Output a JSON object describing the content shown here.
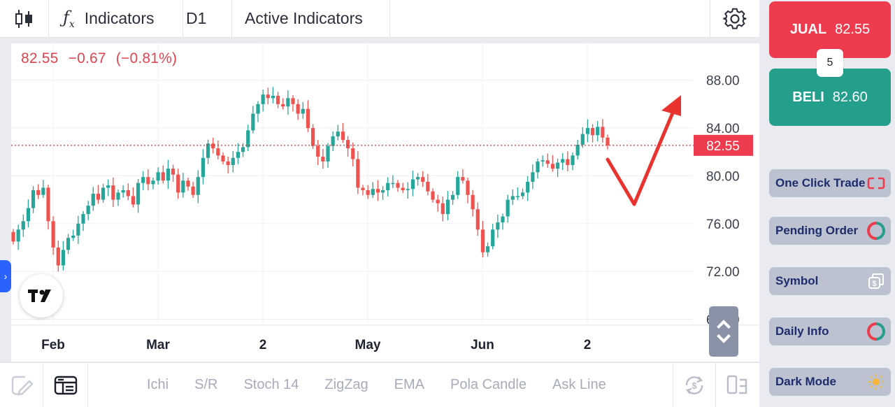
{
  "toolbar": {
    "indicators_label": "Indicators",
    "timeframe": "D1",
    "active_indicators_label": "Active Indicators"
  },
  "chart": {
    "price_last": "82.55",
    "price_change": "−0.67",
    "price_change_pct": "(−0.81%)",
    "last_price_tag": "82.55",
    "tradingview_logo": "TV"
  },
  "chart_data": {
    "type": "candlestick",
    "instrument_timeframe": "D1",
    "y_ticks": [
      "88.00",
      "84.00",
      "80.00",
      "76.00",
      "72.00",
      "68.00"
    ],
    "y_tick_values": [
      88,
      84,
      80,
      76,
      72,
      68
    ],
    "x_ticks": [
      "Feb",
      "Mar",
      "2",
      "May",
      "Jun",
      "2"
    ],
    "ylim": [
      67.5,
      90.5
    ],
    "last_price": 82.55,
    "grid": true,
    "closes": [
      74.5,
      75.5,
      76.2,
      77.3,
      78.8,
      78.4,
      79.0,
      76.2,
      74.0,
      72.5,
      73.8,
      74.8,
      75.0,
      76.0,
      76.8,
      77.5,
      78.5,
      78.0,
      79.0,
      79.2,
      78.0,
      78.6,
      78.8,
      78.3,
      77.6,
      79.4,
      79.9,
      79.3,
      79.6,
      80.3,
      79.6,
      80.6,
      80.1,
      78.6,
      79.6,
      79.1,
      78.4,
      79.9,
      81.5,
      82.7,
      82.3,
      81.7,
      81.2,
      80.9,
      81.5,
      82.0,
      82.4,
      83.8,
      85.2,
      86.0,
      86.8,
      86.5,
      86.7,
      86.0,
      85.8,
      86.5,
      86.0,
      85.2,
      85.6,
      84.0,
      82.5,
      81.6,
      81.2,
      82.5,
      83.3,
      83.7,
      83.0,
      82.3,
      81.4,
      79.0,
      78.8,
      78.4,
      78.9,
      78.6,
      78.8,
      79.4,
      79.4,
      79.0,
      78.8,
      78.9,
      79.7,
      79.9,
      79.5,
      78.7,
      78.0,
      77.7,
      76.8,
      78.0,
      78.4,
      79.9,
      79.6,
      78.4,
      77.2,
      75.5,
      73.6,
      74.1,
      75.5,
      76.1,
      76.6,
      78.0,
      78.3,
      78.3,
      78.6,
      79.5,
      80.3,
      81.2,
      81.3,
      81.0,
      80.6,
      81.1,
      81.4,
      80.9,
      81.7,
      82.6,
      83.5,
      84.0,
      83.4,
      84.1,
      83.2,
      82.55
    ],
    "annotation": "red check-mark arrow drawn to the right of the last candles"
  },
  "bottom_toolbar": {
    "items": [
      "Ichi",
      "S/R",
      "Stoch 14",
      "ZigZag",
      "EMA",
      "Pola Candle",
      "Ask Line"
    ]
  },
  "trade": {
    "sell_label": "JUAL",
    "sell_price": "82.55",
    "buy_label": "BELI",
    "buy_price": "82.60",
    "lot": "5"
  },
  "menu": {
    "one_click_trade": "One Click Trade",
    "pending_order": "Pending Order",
    "symbol": "Symbol",
    "daily_info": "Daily Info",
    "dark_mode": "Dark Mode"
  },
  "colors": {
    "bull": "#26a69a",
    "bear": "#ef5350",
    "sell": "#ee3c4e",
    "buy": "#249f8c",
    "menu_bg": "#bcc2d0",
    "menu_text": "#1c2d6e",
    "annotation": "#e8332f"
  }
}
